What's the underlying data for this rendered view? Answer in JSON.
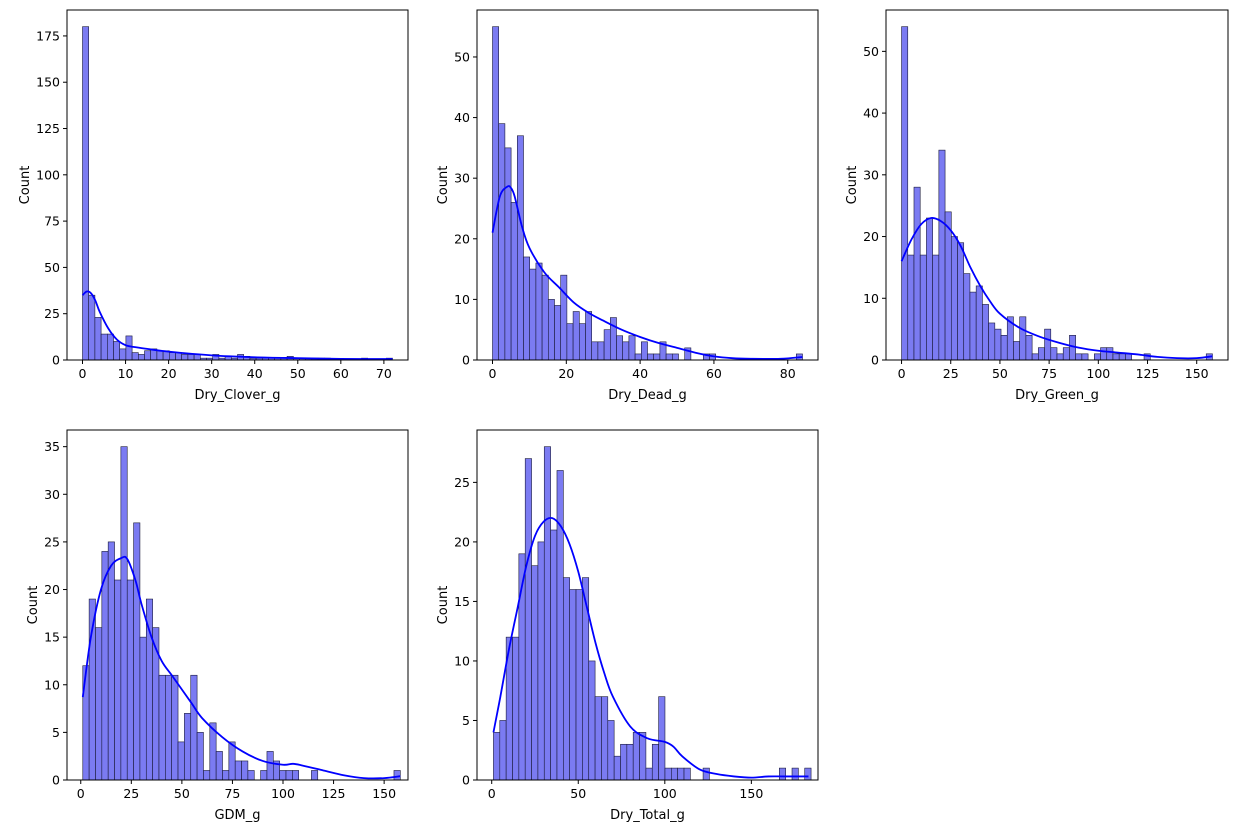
{
  "colors": {
    "bar_fill": "#7b7bf2",
    "bar_edge": "#1a1a3a",
    "kde": "#0000ff",
    "axes": "#000000"
  },
  "chart_data": [
    {
      "type": "histogram",
      "xlabel": "Dry_Clover_g",
      "ylabel": "Count",
      "xlim": [
        -3.6,
        75.6
      ],
      "ylim": [
        0,
        189
      ],
      "xticks": [
        0,
        10,
        20,
        30,
        40,
        50,
        60,
        70
      ],
      "yticks": [
        0,
        25,
        50,
        75,
        100,
        125,
        150,
        175
      ],
      "bin_start": 0,
      "bin_width": 1.44,
      "counts": [
        180,
        35,
        23,
        14,
        14,
        10,
        6,
        13,
        4,
        3,
        5,
        6,
        5,
        5,
        4,
        4,
        3,
        3,
        3,
        1,
        1,
        3,
        1,
        2,
        1,
        3,
        2,
        1,
        1,
        1,
        1,
        1,
        1,
        2,
        1,
        1,
        1,
        1,
        1,
        1,
        0,
        0,
        0,
        0,
        0,
        1,
        0,
        0,
        0,
        1
      ],
      "kde": {
        "x": [
          0,
          1,
          2,
          3,
          4,
          6,
          8,
          10,
          12,
          15,
          20,
          30,
          40,
          50,
          60,
          72
        ],
        "y": [
          35,
          37,
          36,
          32,
          26,
          17,
          11,
          8,
          7,
          6,
          4.5,
          2.5,
          1.5,
          1,
          0.6,
          0.5
        ]
      }
    },
    {
      "type": "histogram",
      "xlabel": "Dry_Dead_g",
      "ylabel": "Count",
      "xlim": [
        -4.2,
        88.2
      ],
      "ylim": [
        0,
        57.75
      ],
      "xticks": [
        0,
        20,
        40,
        60,
        80
      ],
      "yticks": [
        0,
        10,
        20,
        30,
        40,
        50
      ],
      "bin_start": 0,
      "bin_width": 1.68,
      "counts": [
        55,
        39,
        35,
        26,
        37,
        17,
        15,
        16,
        14,
        10,
        9,
        14,
        6,
        8,
        6,
        8,
        3,
        3,
        5,
        7,
        4,
        3,
        4,
        1,
        3,
        1,
        1,
        3,
        1,
        1,
        0,
        2,
        0,
        0,
        1,
        1,
        0,
        0,
        0,
        0,
        0,
        0,
        0,
        0,
        0,
        0,
        0,
        0,
        0,
        1
      ],
      "kde": {
        "x": [
          0,
          2,
          4,
          5,
          6,
          8,
          10,
          14,
          18,
          22,
          26,
          30,
          35,
          40,
          45,
          50,
          55,
          60,
          65,
          70,
          78,
          84
        ],
        "y": [
          21,
          27,
          28.6,
          28.4,
          27,
          22,
          18.5,
          14.5,
          12,
          9.5,
          7.8,
          6.5,
          5,
          3.8,
          2.8,
          2,
          1.2,
          0.6,
          0.3,
          0.2,
          0.2,
          0.5
        ]
      }
    },
    {
      "type": "histogram",
      "xlabel": "Dry_Green_g",
      "ylabel": "Count",
      "xlim": [
        -7.9,
        165.9
      ],
      "ylim": [
        0,
        56.7
      ],
      "xticks": [
        0,
        25,
        50,
        75,
        100,
        125,
        150
      ],
      "yticks": [
        0,
        10,
        20,
        30,
        40,
        50
      ],
      "bin_start": 0,
      "bin_width": 3.16,
      "counts": [
        54,
        17,
        28,
        17,
        23,
        17,
        34,
        24,
        20,
        19,
        14,
        11,
        12,
        9,
        6,
        5,
        4,
        7,
        3,
        7,
        4,
        1,
        2,
        5,
        2,
        1,
        2,
        4,
        1,
        1,
        0,
        1,
        2,
        2,
        1,
        1,
        1,
        0,
        0,
        1,
        0,
        0,
        0,
        0,
        0,
        0,
        0,
        0,
        0,
        1
      ],
      "kde": {
        "x": [
          0,
          5,
          10,
          15,
          20,
          25,
          30,
          35,
          40,
          45,
          50,
          60,
          70,
          80,
          90,
          100,
          110,
          120,
          130,
          140,
          150,
          158
        ],
        "y": [
          16,
          19.5,
          22,
          23,
          22.5,
          21,
          18.5,
          15,
          12,
          9.5,
          7.5,
          5.2,
          3.8,
          2.8,
          2,
          1.5,
          1.2,
          0.9,
          0.5,
          0.3,
          0.3,
          0.6
        ]
      }
    },
    {
      "type": "histogram",
      "xlabel": "GDM_g",
      "ylabel": "Count",
      "xlim": [
        -6.8,
        161.8
      ],
      "ylim": [
        0,
        36.75
      ],
      "xticks": [
        0,
        25,
        50,
        75,
        100,
        125,
        150
      ],
      "yticks": [
        0,
        5,
        10,
        15,
        20,
        25,
        30,
        35
      ],
      "bin_start": 1,
      "bin_width": 3.14,
      "counts": [
        12,
        19,
        16,
        24,
        25,
        21,
        35,
        21,
        27,
        15,
        19,
        16,
        11,
        11,
        11,
        4,
        7,
        11,
        5,
        1,
        6,
        3,
        1,
        4,
        2,
        2,
        1,
        0,
        1,
        3,
        2,
        1,
        1,
        1,
        0,
        0,
        1,
        0,
        0,
        0,
        0,
        0,
        0,
        0,
        0,
        0,
        0,
        0,
        0,
        1
      ],
      "kde": {
        "x": [
          1,
          5,
          10,
          15,
          20,
          23,
          27,
          30,
          35,
          40,
          45,
          50,
          55,
          60,
          70,
          80,
          90,
          100,
          105,
          110,
          120,
          130,
          140,
          150,
          158
        ],
        "y": [
          8.7,
          15,
          20,
          22.5,
          23.3,
          23.2,
          21,
          18.5,
          15,
          12.5,
          11,
          9.5,
          8,
          6.5,
          4.5,
          3,
          2,
          1.6,
          1.7,
          1.5,
          1,
          0.5,
          0.2,
          0.2,
          0.4
        ]
      }
    },
    {
      "type": "histogram",
      "xlabel": "Dry_Total_g",
      "ylabel": "Count",
      "xlim": [
        -8.5,
        188.5
      ],
      "ylim": [
        0,
        29.4
      ],
      "xticks": [
        0,
        50,
        100,
        150
      ],
      "yticks": [
        0,
        5,
        10,
        15,
        20,
        25
      ],
      "bin_start": 1,
      "bin_width": 3.67,
      "counts": [
        4,
        5,
        12,
        12,
        19,
        27,
        18,
        20,
        28,
        21,
        26,
        17,
        16,
        16,
        17,
        10,
        7,
        7,
        5,
        2,
        3,
        3,
        4,
        4,
        1,
        3,
        7,
        1,
        1,
        1,
        1,
        0,
        0,
        1,
        0,
        0,
        0,
        0,
        0,
        0,
        0,
        0,
        0,
        0,
        0,
        1,
        0,
        1,
        0,
        1
      ],
      "kde": {
        "x": [
          1,
          5,
          10,
          15,
          20,
          25,
          30,
          35,
          40,
          45,
          50,
          55,
          60,
          65,
          70,
          80,
          90,
          100,
          105,
          110,
          120,
          130,
          140,
          150,
          160,
          170,
          183
        ],
        "y": [
          4,
          7,
          11,
          14.5,
          18,
          20.5,
          21.7,
          22,
          21.3,
          19.8,
          17.5,
          14.5,
          11.5,
          9,
          7,
          4.5,
          3.5,
          3.2,
          2.8,
          2,
          0.9,
          0.5,
          0.3,
          0.2,
          0.3,
          0.3,
          0.3
        ]
      }
    }
  ]
}
